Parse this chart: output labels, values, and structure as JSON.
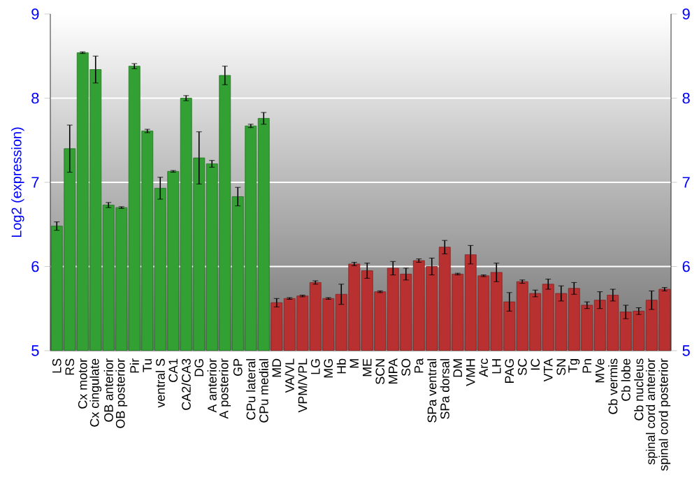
{
  "chart_data": {
    "type": "bar",
    "ylabel": "Log2 (expression)",
    "categories": [
      "LS",
      "RS",
      "Cx motor",
      "Cx cingulate",
      "OB anterior",
      "OB posterior",
      "Pir",
      "Tu",
      "ventral S",
      "CA1",
      "CA2/CA3",
      "DG",
      "A anterior",
      "A posterior",
      "GP",
      "CPu lateral",
      "CPu medial",
      "MD",
      "VA/VL",
      "VPM/VPL",
      "LG",
      "MG",
      "Hb",
      "M",
      "ME",
      "SCN",
      "MPA",
      "SO",
      "Pa",
      "SPa ventral",
      "SPa dorsal",
      "DM",
      "VMH",
      "Arc",
      "LH",
      "PAG",
      "SC",
      "IC",
      "VTA",
      "SN",
      "Tg",
      "Pn",
      "MVe",
      "Cb vermis",
      "Cb lobe",
      "Cb nucleus",
      "spinal cord anterior",
      "spinal cord posterior"
    ],
    "values": [
      6.48,
      7.4,
      8.54,
      8.34,
      6.73,
      6.7,
      8.38,
      7.61,
      6.93,
      7.13,
      8.0,
      7.29,
      7.22,
      8.27,
      6.83,
      7.67,
      7.76,
      5.57,
      5.62,
      5.65,
      5.81,
      5.62,
      5.67,
      6.03,
      5.95,
      5.7,
      5.98,
      5.91,
      6.07,
      6.0,
      6.23,
      5.91,
      6.14,
      5.89,
      5.93,
      5.58,
      5.82,
      5.68,
      5.79,
      5.68,
      5.74,
      5.54,
      5.6,
      5.66,
      5.46,
      5.47,
      5.6,
      5.73
    ],
    "errors": [
      0.05,
      0.28,
      0.01,
      0.16,
      0.03,
      0.01,
      0.03,
      0.02,
      0.13,
      0.01,
      0.03,
      0.31,
      0.04,
      0.11,
      0.11,
      0.02,
      0.07,
      0.05,
      0.01,
      0.01,
      0.02,
      0.01,
      0.12,
      0.02,
      0.09,
      0.01,
      0.08,
      0.07,
      0.02,
      0.1,
      0.08,
      0.01,
      0.11,
      0.01,
      0.11,
      0.11,
      0.02,
      0.04,
      0.06,
      0.09,
      0.07,
      0.04,
      0.1,
      0.07,
      0.08,
      0.04,
      0.11,
      0.02
    ],
    "colors": [
      "#33a033",
      "#33a033",
      "#33a033",
      "#33a033",
      "#33a033",
      "#33a033",
      "#33a033",
      "#33a033",
      "#33a033",
      "#33a033",
      "#33a033",
      "#33a033",
      "#33a033",
      "#33a033",
      "#33a033",
      "#33a033",
      "#33a033",
      "#b83030",
      "#b83030",
      "#b83030",
      "#b83030",
      "#b83030",
      "#b83030",
      "#b83030",
      "#b83030",
      "#b83030",
      "#b83030",
      "#b83030",
      "#b83030",
      "#b83030",
      "#b83030",
      "#b83030",
      "#b83030",
      "#b83030",
      "#b83030",
      "#b83030",
      "#b83030",
      "#b83030",
      "#b83030",
      "#b83030",
      "#b83030",
      "#b83030",
      "#b83030",
      "#b83030",
      "#b83030",
      "#b83030",
      "#b83030",
      "#b83030"
    ],
    "ylim": [
      5,
      9
    ],
    "yticks": [
      5,
      6,
      7,
      8,
      9
    ],
    "y2lim": [
      5,
      9
    ],
    "y2ticks": [
      5,
      6,
      7,
      8,
      9
    ],
    "grid": "y"
  }
}
